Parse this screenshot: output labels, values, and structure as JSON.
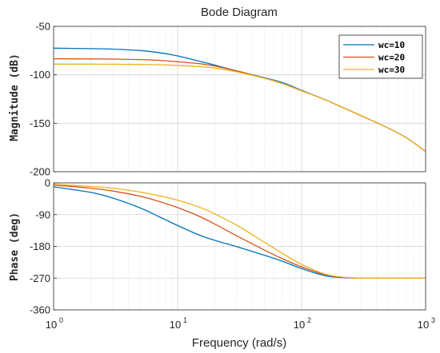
{
  "chart_data": [
    {
      "type": "line",
      "title": "Bode Diagram",
      "ylabel": "Magnitude (dB)",
      "xlabel": "",
      "xscale": "log",
      "xlim": [
        1,
        1000
      ],
      "ylim": [
        -200,
        -50
      ],
      "yticks": [
        "-50",
        "-100",
        "-150",
        "-200"
      ],
      "grid": true,
      "legend": "top-right",
      "x": [
        1,
        2,
        3,
        5,
        7,
        10,
        15,
        20,
        30,
        50,
        70,
        100,
        150,
        200,
        300,
        500,
        700,
        1000
      ],
      "series": [
        {
          "name": "wc=10",
          "color": "#0072bd",
          "values": [
            -72.5,
            -73,
            -73.5,
            -75,
            -77,
            -80.5,
            -86,
            -90,
            -96,
            -103,
            -108,
            -116,
            -125,
            -132,
            -142,
            -155,
            -165,
            -179
          ]
        },
        {
          "name": "wc=20",
          "color": "#d95319",
          "values": [
            -83.5,
            -83.6,
            -83.8,
            -84.3,
            -85,
            -86.5,
            -88.5,
            -91,
            -96,
            -103.5,
            -109,
            -116.5,
            -125,
            -132,
            -142,
            -155,
            -165,
            -179
          ]
        },
        {
          "name": "wc=30",
          "color": "#edb120",
          "values": [
            -89,
            -89,
            -89.1,
            -89.3,
            -89.6,
            -90.3,
            -91.5,
            -93,
            -97,
            -103.5,
            -109,
            -116.5,
            -125,
            -132,
            -142,
            -155,
            -165,
            -179
          ]
        }
      ]
    },
    {
      "type": "line",
      "title": "",
      "ylabel": "Phase (deg)",
      "xlabel": "Frequency  (rad/s)",
      "xscale": "log",
      "xlim": [
        1,
        1000
      ],
      "ylim": [
        -360,
        0
      ],
      "yticks": [
        "0",
        "-90",
        "-180",
        "-270",
        "-360"
      ],
      "xticks": [
        {
          "base": "10",
          "exp": "0"
        },
        {
          "base": "10",
          "exp": "1"
        },
        {
          "base": "10",
          "exp": "2"
        },
        {
          "base": "10",
          "exp": "3"
        }
      ],
      "grid": true,
      "x": [
        1,
        2,
        3,
        5,
        7,
        10,
        15,
        20,
        30,
        50,
        70,
        100,
        150,
        200,
        300,
        500,
        700,
        1000
      ],
      "series": [
        {
          "name": "wc=10",
          "color": "#0072bd",
          "values": [
            -11,
            -27,
            -43,
            -71,
            -95,
            -121,
            -148,
            -163,
            -181,
            -205,
            -222,
            -243,
            -262,
            -268,
            -270,
            -270,
            -270,
            -270
          ]
        },
        {
          "name": "wc=20",
          "color": "#d95319",
          "values": [
            -6,
            -15,
            -23,
            -38,
            -52,
            -70,
            -95,
            -117,
            -150,
            -190,
            -215,
            -238,
            -259,
            -267,
            -270,
            -270,
            -270,
            -270
          ]
        },
        {
          "name": "wc=30",
          "color": "#edb120",
          "values": [
            -4,
            -10,
            -15,
            -26,
            -36,
            -49,
            -69,
            -88,
            -120,
            -168,
            -200,
            -231,
            -257,
            -266,
            -270,
            -270,
            -270,
            -270
          ]
        }
      ]
    }
  ]
}
